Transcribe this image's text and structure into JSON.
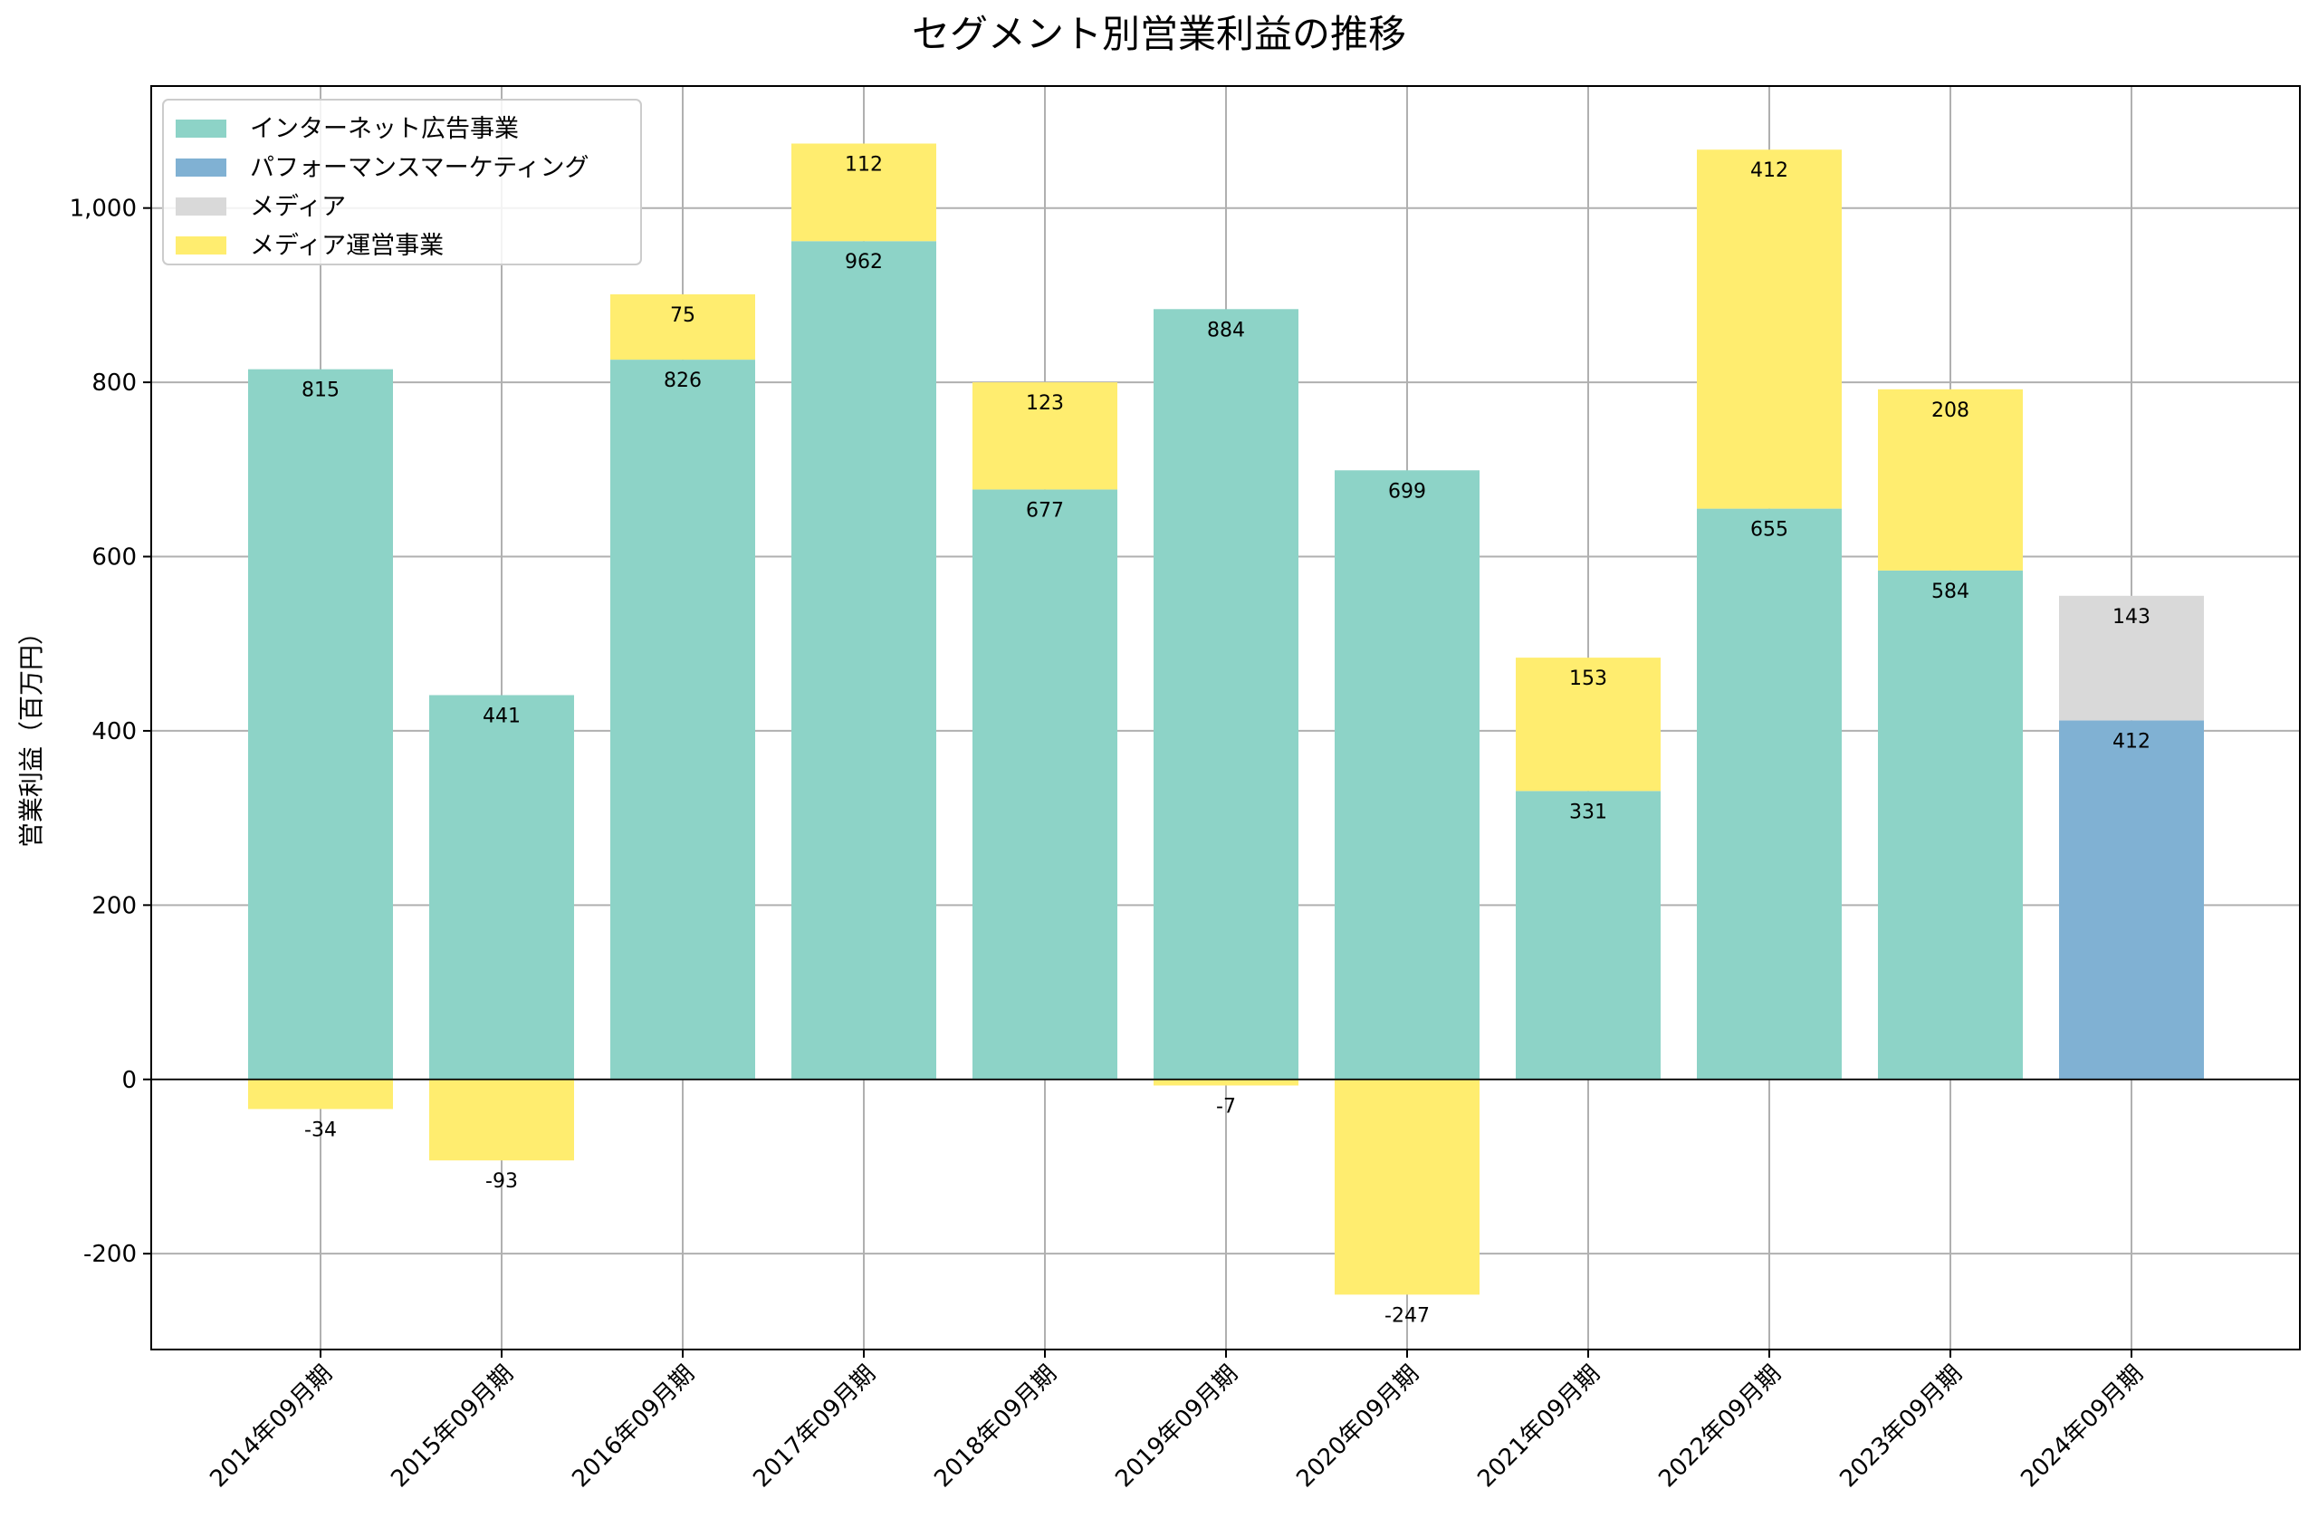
{
  "chart_data": {
    "type": "bar",
    "stacked": true,
    "title": "セグメント別営業利益の推移",
    "xlabel": "",
    "ylabel": "営業利益（百万円）",
    "ylim": [
      -310,
      1140
    ],
    "yticks": [
      -200,
      0,
      200,
      400,
      600,
      800,
      1000
    ],
    "ytick_labels": [
      "-200",
      "0",
      "200",
      "400",
      "600",
      "800",
      "1,000"
    ],
    "grid": true,
    "legend_position": "top-left",
    "categories": [
      "2014年09月期",
      "2015年09月期",
      "2016年09月期",
      "2017年09月期",
      "2018年09月期",
      "2019年09月期",
      "2020年09月期",
      "2021年09月期",
      "2022年09月期",
      "2023年09月期",
      "2024年09月期"
    ],
    "series": [
      {
        "name": "インターネット広告事業",
        "color": "#8dd3c7",
        "values": [
          815,
          441,
          826,
          962,
          677,
          884,
          699,
          331,
          655,
          584,
          null
        ],
        "labels": [
          "815",
          "441",
          "826",
          "962",
          "677",
          "884",
          "699",
          "331",
          "655",
          "584",
          null
        ]
      },
      {
        "name": "パフォーマンスマーケティング",
        "color": "#80b1d3",
        "values": [
          null,
          null,
          null,
          null,
          null,
          null,
          null,
          null,
          null,
          null,
          412
        ],
        "labels": [
          null,
          null,
          null,
          null,
          null,
          null,
          null,
          null,
          null,
          null,
          "412"
        ]
      },
      {
        "name": "メディア",
        "color": "#d9d9d9",
        "values": [
          null,
          null,
          null,
          null,
          null,
          null,
          null,
          null,
          null,
          null,
          143
        ],
        "labels": [
          null,
          null,
          null,
          null,
          null,
          null,
          null,
          null,
          null,
          null,
          "143"
        ]
      },
      {
        "name": "メディア運営事業",
        "color": "#ffed6f",
        "values": [
          -34,
          -93,
          75,
          112,
          123,
          -7,
          -247,
          153,
          412,
          208,
          null
        ],
        "labels": [
          "-34",
          "-93",
          "75",
          "112",
          "123",
          "-7",
          "-247",
          "153",
          "412",
          "208",
          null
        ]
      }
    ]
  }
}
